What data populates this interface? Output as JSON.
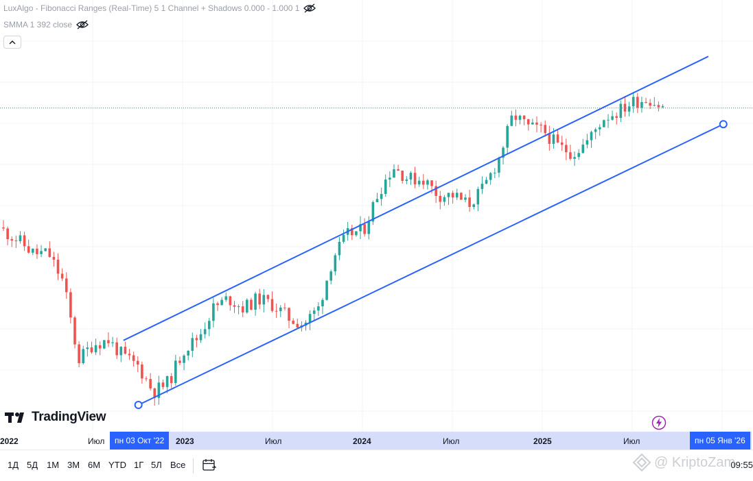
{
  "legend": {
    "indicator1": "LuxAlgo - Fibonacci Ranges (Real-Time) 5 1 Channel + Shadows 0.000 - 1.000 1",
    "indicator2": "SMMA 1 392 close"
  },
  "brand": {
    "logo_text": "TradingView"
  },
  "time_axis": {
    "ticks": [
      {
        "label": "2022",
        "bold": true
      },
      {
        "label": "Июл",
        "bold": false
      },
      {
        "label": "2023",
        "bold": true
      },
      {
        "label": "Июл",
        "bold": false
      },
      {
        "label": "2024",
        "bold": true
      },
      {
        "label": "Июл",
        "bold": false
      },
      {
        "label": "2025",
        "bold": true
      },
      {
        "label": "Июл",
        "bold": false
      }
    ],
    "range_start_label": "пн 03 Окт '22",
    "range_end_label": "пн 05 Янв '26"
  },
  "toolbar": {
    "timeframes": [
      "1Д",
      "5Д",
      "1М",
      "3М",
      "6М",
      "YTD",
      "1Г",
      "5Л",
      "Все"
    ],
    "clock": "09:55"
  },
  "watermark": {
    "text": "@ KriptoZam"
  },
  "colors": {
    "up": "#26a69a",
    "down": "#ef5350",
    "channel": "#2962ff",
    "highlight_band": "#d6ddfb",
    "date_label_bg": "#2962ff"
  },
  "chart_data": {
    "type": "candlestick",
    "x_start": "2022-01",
    "x_end": "2026-01",
    "channel": {
      "upper": [
        [
          "2022-09",
          0.2
        ],
        [
          "2025-12",
          1.08
        ]
      ],
      "lower": [
        [
          "2022-10",
          0.0
        ],
        [
          "2026-01",
          0.87
        ]
      ]
    },
    "close_trend": [
      [
        "2022-01",
        0.54
      ],
      [
        "2022-02",
        0.51
      ],
      [
        "2022-03",
        0.47
      ],
      [
        "2022-04",
        0.47
      ],
      [
        "2022-05",
        0.38
      ],
      [
        "2022-06",
        0.14
      ],
      [
        "2022-07",
        0.19
      ],
      [
        "2022-08",
        0.2
      ],
      [
        "2022-09",
        0.15
      ],
      [
        "2022-10",
        0.12
      ],
      [
        "2022-11",
        0.04
      ],
      [
        "2022-12",
        0.07
      ],
      [
        "2023-01",
        0.17
      ],
      [
        "2023-02",
        0.21
      ],
      [
        "2023-03",
        0.3
      ],
      [
        "2023-04",
        0.33
      ],
      [
        "2023-05",
        0.3
      ],
      [
        "2023-06",
        0.33
      ],
      [
        "2023-07",
        0.31
      ],
      [
        "2023-08",
        0.27
      ],
      [
        "2023-09",
        0.25
      ],
      [
        "2023-10",
        0.3
      ],
      [
        "2023-11",
        0.46
      ],
      [
        "2023-12",
        0.53
      ],
      [
        "2024-01",
        0.54
      ],
      [
        "2024-02",
        0.66
      ],
      [
        "2024-03",
        0.74
      ],
      [
        "2024-04",
        0.7
      ],
      [
        "2024-05",
        0.7
      ],
      [
        "2024-06",
        0.65
      ],
      [
        "2024-07",
        0.65
      ],
      [
        "2024-08",
        0.62
      ],
      [
        "2024-09",
        0.67
      ],
      [
        "2024-10",
        0.76
      ],
      [
        "2024-11",
        0.9
      ],
      [
        "2024-12",
        0.86
      ],
      [
        "2025-01",
        0.85
      ],
      [
        "2025-02",
        0.8
      ],
      [
        "2025-03",
        0.78
      ],
      [
        "2025-04",
        0.82
      ],
      [
        "2025-05",
        0.89
      ],
      [
        "2025-06",
        0.91
      ],
      [
        "2025-07",
        0.94
      ],
      [
        "2025-08",
        0.95
      ],
      [
        "2025-09",
        0.92
      ]
    ],
    "last_price": 0.92,
    "legend_placement": "top-left",
    "grid": true
  }
}
